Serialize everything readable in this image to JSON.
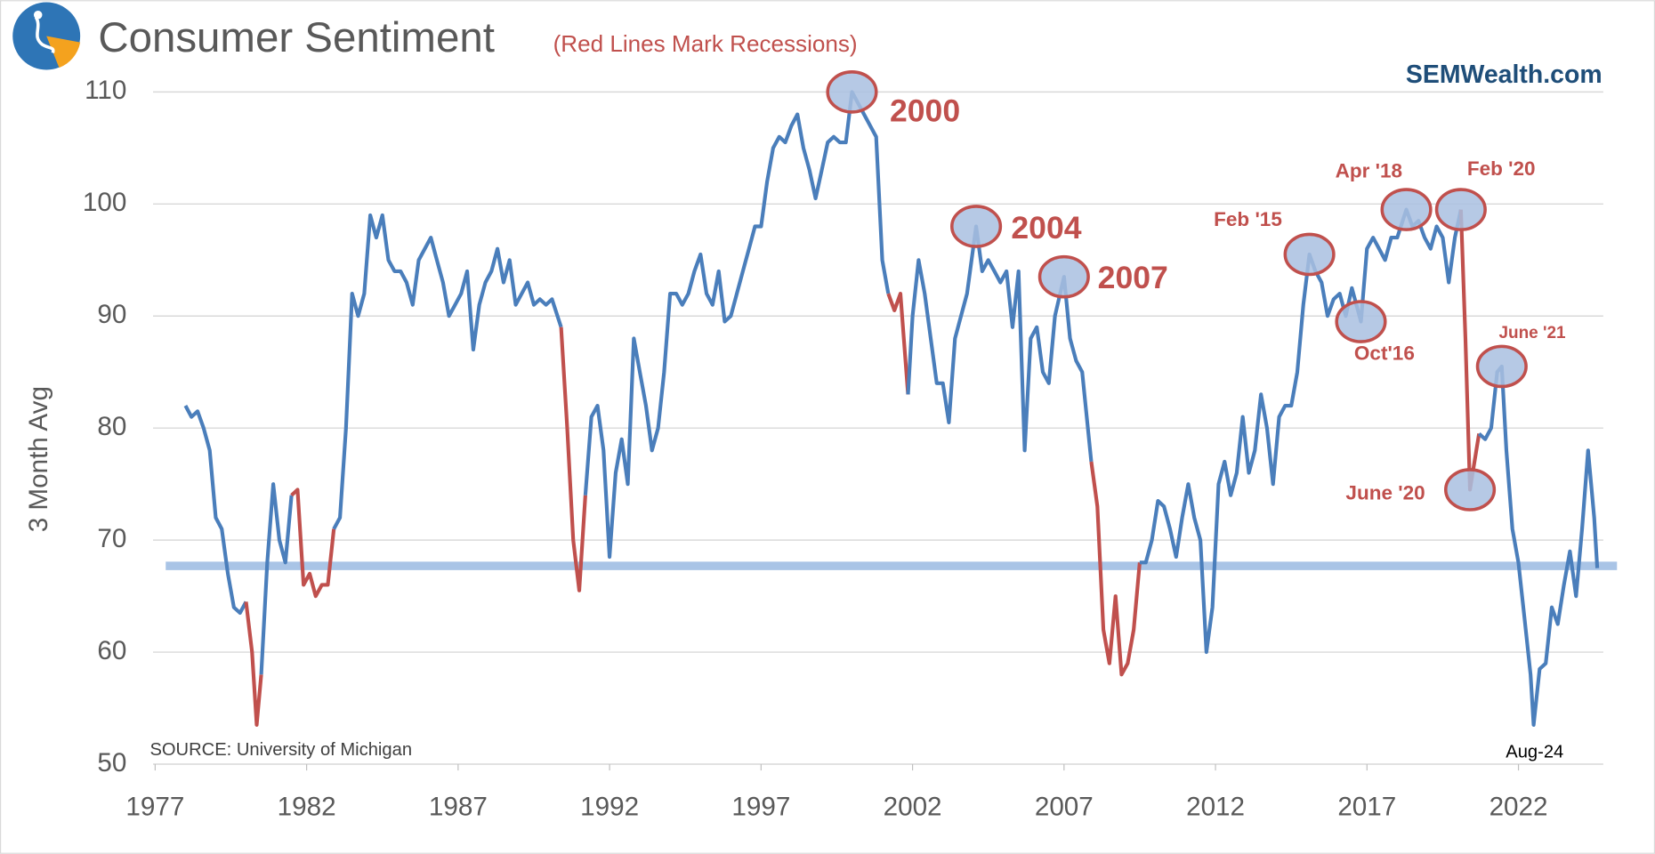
{
  "chart_data": {
    "type": "line",
    "title": "Consumer Sentiment",
    "subtitle": "(Red Lines Mark Recessions)",
    "brand": "SEMWealth.com",
    "y_label": "3 Month Avg",
    "source": "SOURCE:  University of Michigan",
    "end_label": "Aug-24",
    "xlim": [
      1977,
      2024.8
    ],
    "xticks": [
      1977,
      1982,
      1987,
      1992,
      1997,
      2002,
      2007,
      2012,
      2017,
      2022
    ],
    "ylim": [
      50,
      110
    ],
    "yticks": [
      50,
      60,
      70,
      80,
      90,
      100,
      110
    ],
    "grid": true,
    "recession_color": "#c0504d",
    "recessions": [
      [
        1980.0,
        1980.5
      ],
      [
        1981.5,
        1982.9
      ],
      [
        1990.4,
        1991.2
      ],
      [
        2001.2,
        2001.85
      ],
      [
        2007.9,
        2009.5
      ],
      [
        2020.1,
        2020.7
      ]
    ],
    "reference_line": {
      "value": 67.7,
      "color": "#a9c4e6"
    },
    "x": [
      1978.0,
      1978.2,
      1978.4,
      1978.6,
      1978.8,
      1979.0,
      1979.2,
      1979.4,
      1979.6,
      1979.8,
      1980.0,
      1980.2,
      1980.35,
      1980.5,
      1980.7,
      1980.9,
      1981.1,
      1981.3,
      1981.5,
      1981.7,
      1981.9,
      1982.1,
      1982.3,
      1982.5,
      1982.7,
      1982.9,
      1983.1,
      1983.3,
      1983.5,
      1983.7,
      1983.9,
      1984.1,
      1984.3,
      1984.5,
      1984.7,
      1984.9,
      1985.1,
      1985.3,
      1985.5,
      1985.7,
      1985.9,
      1986.1,
      1986.3,
      1986.5,
      1986.7,
      1986.9,
      1987.1,
      1987.3,
      1987.5,
      1987.7,
      1987.9,
      1988.1,
      1988.3,
      1988.5,
      1988.7,
      1988.9,
      1989.1,
      1989.3,
      1989.5,
      1989.7,
      1989.9,
      1990.1,
      1990.4,
      1990.6,
      1990.8,
      1991.0,
      1991.2,
      1991.4,
      1991.6,
      1991.8,
      1992.0,
      1992.2,
      1992.4,
      1992.6,
      1992.8,
      1993.0,
      1993.2,
      1993.4,
      1993.6,
      1993.8,
      1994.0,
      1994.2,
      1994.4,
      1994.6,
      1994.8,
      1995.0,
      1995.2,
      1995.4,
      1995.6,
      1995.8,
      1996.0,
      1996.2,
      1996.4,
      1996.6,
      1996.8,
      1997.0,
      1997.2,
      1997.4,
      1997.6,
      1997.8,
      1998.0,
      1998.2,
      1998.4,
      1998.6,
      1998.8,
      1999.0,
      1999.2,
      1999.4,
      1999.6,
      1999.8,
      2000.0,
      2000.2,
      2000.4,
      2000.6,
      2000.8,
      2001.0,
      2001.2,
      2001.4,
      2001.6,
      2001.85,
      2002.0,
      2002.2,
      2002.4,
      2002.6,
      2002.8,
      2003.0,
      2003.2,
      2003.4,
      2003.6,
      2003.8,
      2004.1,
      2004.3,
      2004.5,
      2004.7,
      2004.9,
      2005.1,
      2005.3,
      2005.5,
      2005.7,
      2005.9,
      2006.1,
      2006.3,
      2006.5,
      2006.7,
      2007.0,
      2007.2,
      2007.4,
      2007.6,
      2007.9,
      2008.1,
      2008.3,
      2008.5,
      2008.7,
      2008.9,
      2009.1,
      2009.3,
      2009.5,
      2009.7,
      2009.9,
      2010.1,
      2010.3,
      2010.5,
      2010.7,
      2010.9,
      2011.1,
      2011.3,
      2011.5,
      2011.7,
      2011.9,
      2012.1,
      2012.3,
      2012.5,
      2012.7,
      2012.9,
      2013.1,
      2013.3,
      2013.5,
      2013.7,
      2013.9,
      2014.1,
      2014.3,
      2014.5,
      2014.7,
      2014.9,
      2015.1,
      2015.3,
      2015.5,
      2015.7,
      2015.9,
      2016.1,
      2016.3,
      2016.5,
      2016.8,
      2017.0,
      2017.2,
      2017.4,
      2017.6,
      2017.8,
      2018.0,
      2018.3,
      2018.5,
      2018.7,
      2018.9,
      2019.1,
      2019.3,
      2019.5,
      2019.7,
      2019.9,
      2020.1,
      2020.25,
      2020.4,
      2020.55,
      2020.7,
      2020.9,
      2021.1,
      2021.3,
      2021.45,
      2021.6,
      2021.8,
      2022.0,
      2022.2,
      2022.4,
      2022.5,
      2022.7,
      2022.9,
      2023.1,
      2023.3,
      2023.5,
      2023.7,
      2023.9,
      2024.1,
      2024.3,
      2024.5,
      2024.6
    ],
    "series": [
      {
        "color": "#4a7ebb",
        "values": [
          82,
          81,
          81.5,
          80,
          78,
          72,
          71,
          67,
          64,
          63.5,
          64.5,
          60,
          53.5,
          58,
          68,
          75,
          70,
          68,
          74,
          74.5,
          66,
          67,
          65,
          66,
          66,
          71,
          72,
          80,
          92,
          90,
          92,
          99,
          97,
          99,
          95,
          94,
          94,
          93,
          91,
          95,
          96,
          97,
          95,
          93,
          90,
          91,
          92,
          94,
          87,
          91,
          93,
          94,
          96,
          93,
          95,
          91,
          92,
          93,
          91,
          91.5,
          91,
          91.5,
          89,
          80,
          70,
          65.5,
          74,
          81,
          82,
          78,
          68.5,
          76,
          79,
          75,
          88,
          85,
          82,
          78,
          80,
          85,
          92,
          92,
          91,
          92,
          94,
          95.5,
          92,
          91,
          94,
          89.5,
          90,
          92,
          94,
          96,
          98,
          98,
          102,
          105,
          106,
          105.5,
          107,
          108,
          105,
          103,
          100.5,
          103,
          105.5,
          106,
          105.5,
          105.5,
          110,
          109,
          108,
          107,
          106,
          95,
          92,
          90.5,
          92,
          83,
          90,
          95,
          92,
          88,
          84,
          84,
          80.5,
          88,
          90,
          92,
          98,
          94,
          95,
          94,
          93,
          94,
          89,
          94,
          78,
          88,
          89,
          85,
          84,
          90,
          93.5,
          88,
          86,
          85,
          77,
          73,
          62,
          59,
          65,
          58,
          59,
          62,
          68,
          68,
          70,
          73.5,
          73,
          71,
          68.5,
          72,
          75,
          72,
          70,
          60,
          64,
          75,
          77,
          74,
          76,
          81,
          76,
          78,
          83,
          80,
          75,
          81,
          82,
          82,
          85,
          91,
          95.5,
          94,
          93,
          90,
          91.5,
          92,
          90,
          92.5,
          89.5,
          96,
          97,
          96,
          95,
          97,
          97,
          99.5,
          98,
          98.5,
          97,
          96,
          98,
          97,
          93,
          97,
          99.5,
          88,
          74.5,
          77,
          79.5,
          79,
          80,
          85,
          85.5,
          78,
          71,
          68,
          63,
          58,
          53.5,
          58.5,
          59,
          64,
          62.5,
          66,
          69,
          65,
          71,
          78,
          72,
          67.5
        ]
      }
    ],
    "annotations": [
      {
        "label": "2000",
        "x": 2000.0,
        "y": 110
      },
      {
        "label": "2004",
        "x": 2004.1,
        "y": 98
      },
      {
        "label": "2007",
        "x": 2007.0,
        "y": 93.5
      },
      {
        "label": "Feb '15",
        "x": 2015.1,
        "y": 95.5
      },
      {
        "label": "Oct'16",
        "x": 2016.8,
        "y": 89.5
      },
      {
        "label": "Apr '18",
        "x": 2018.3,
        "y": 99.5
      },
      {
        "label": "Feb '20",
        "x": 2020.1,
        "y": 99.5
      },
      {
        "label": "June '20",
        "x": 2020.4,
        "y": 74.5
      },
      {
        "label": "June '21",
        "x": 2021.45,
        "y": 85.5
      }
    ]
  }
}
